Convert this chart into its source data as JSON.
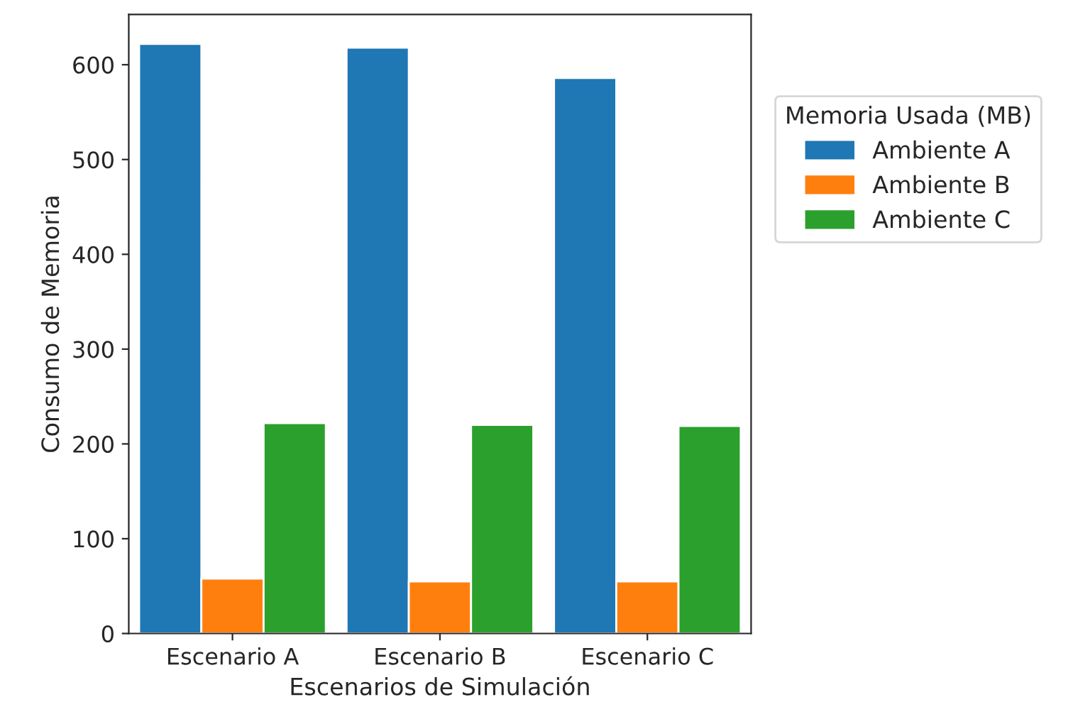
{
  "chart_data": {
    "type": "bar",
    "xlabel": "Escenarios de Simulación",
    "ylabel": "Consumo de Memoria",
    "categories": [
      "Escenario A",
      "Escenario B",
      "Escenario C"
    ],
    "legend_title": "Memoria Usada (MB)",
    "series": [
      {
        "name": "Ambiente A",
        "color": "#1f77b4",
        "values": [
          622,
          618,
          586
        ]
      },
      {
        "name": "Ambiente B",
        "color": "#ff7f0e",
        "values": [
          58,
          55,
          55
        ]
      },
      {
        "name": "Ambiente C",
        "color": "#2ca02c",
        "values": [
          222,
          220,
          219
        ]
      }
    ],
    "ylim": [
      0,
      653
    ],
    "yticks": [
      0,
      100,
      200,
      300,
      400,
      500,
      600
    ],
    "legend": "right"
  }
}
